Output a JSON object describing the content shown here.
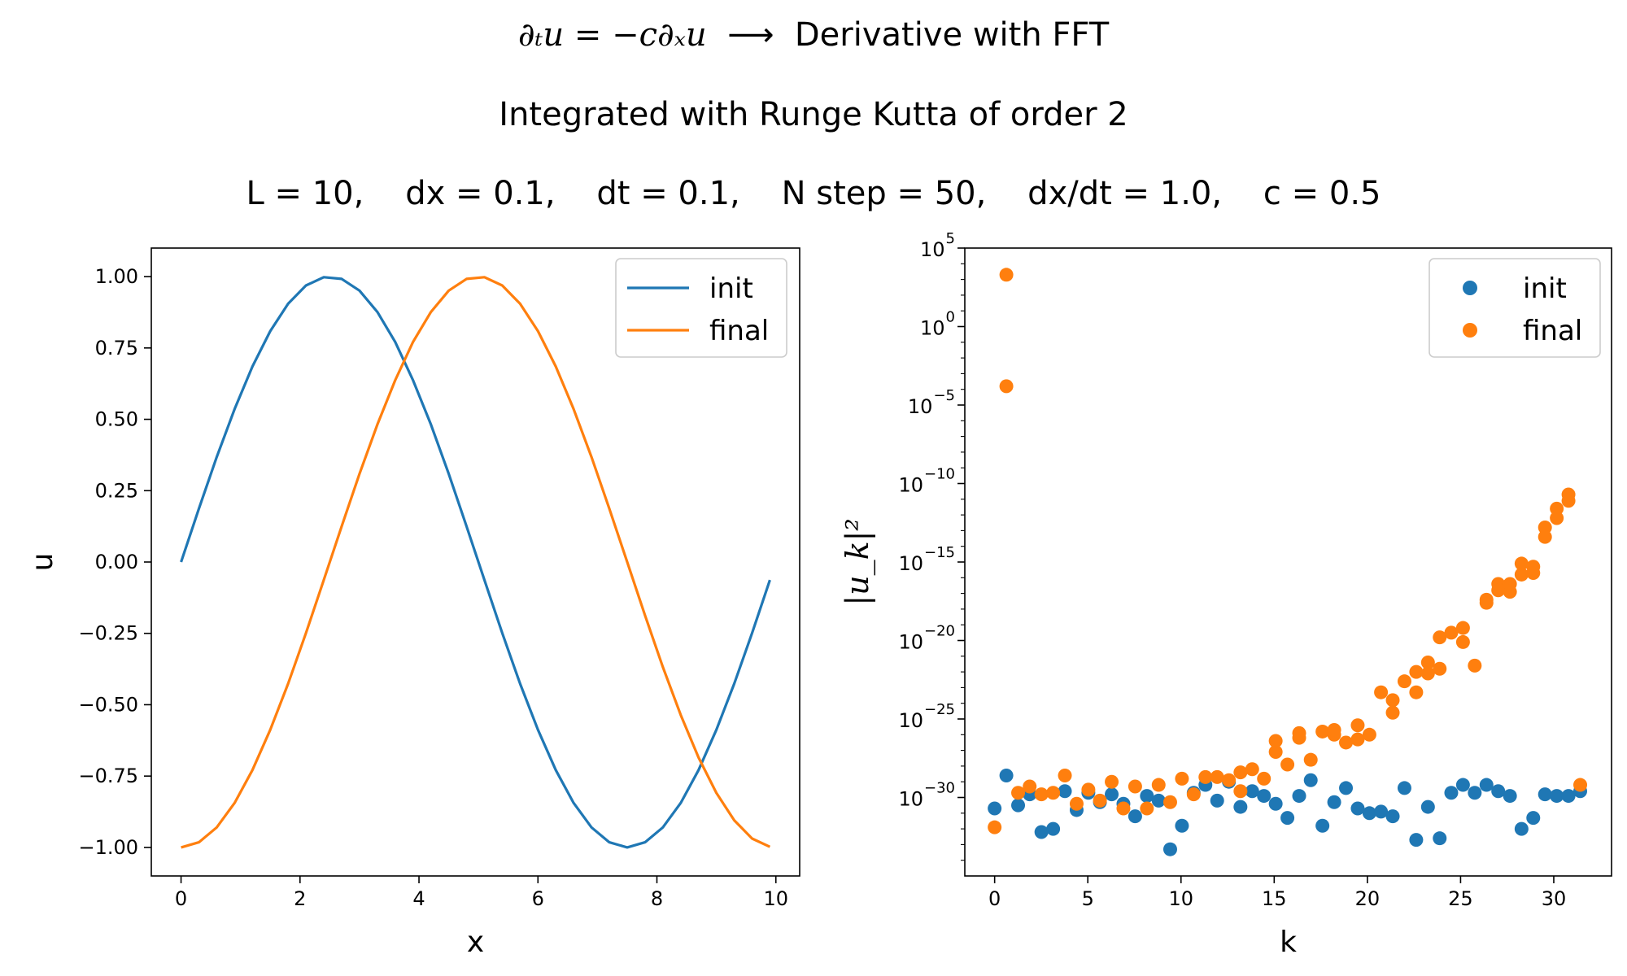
{
  "suptitle": {
    "line1_math": "∂ₜu = −c∂ₓu",
    "line1_arrow": "⟶",
    "line1_text": "Derivative with FFT",
    "line2": "Integrated with Runge Kutta of order 2",
    "line3": "L = 10,    dx = 0.1,    dt = 0.1,    N step = 50,    dx/dt = 1.0,    c = 0.5"
  },
  "colors": {
    "init": "#1f77b4",
    "final": "#ff7f0e"
  },
  "chart_data": [
    {
      "type": "line",
      "xlabel": "x",
      "ylabel": "u",
      "xlim": [
        -0.5,
        10.4
      ],
      "ylim": [
        -1.1,
        1.1
      ],
      "xticks": [
        0,
        2,
        4,
        6,
        8,
        10
      ],
      "yticks": [
        1.0,
        0.75,
        0.5,
        0.25,
        0.0,
        -0.25,
        -0.5,
        -0.75,
        -1.0
      ],
      "ytick_labels": [
        "1.00",
        "0.75",
        "0.50",
        "0.25",
        "0.00",
        "−0.25",
        "−0.50",
        "−0.75",
        "−1.00"
      ],
      "legend_position": "upper-right",
      "series": [
        {
          "name": "init",
          "x": [
            0.0,
            0.3,
            0.6,
            0.9,
            1.2,
            1.5,
            1.8,
            2.1,
            2.4,
            2.7,
            3.0,
            3.3,
            3.6,
            3.9,
            4.2,
            4.5,
            4.8,
            5.1,
            5.4,
            5.7,
            6.0,
            6.3,
            6.6,
            6.9,
            7.2,
            7.5,
            7.8,
            8.1,
            8.4,
            8.7,
            9.0,
            9.3,
            9.6,
            9.9
          ],
          "y": [
            0.0,
            0.187,
            0.368,
            0.536,
            0.685,
            0.809,
            0.905,
            0.969,
            0.998,
            0.992,
            0.951,
            0.876,
            0.771,
            0.637,
            0.482,
            0.309,
            0.125,
            -0.063,
            -0.249,
            -0.426,
            -0.588,
            -0.729,
            -0.844,
            -0.93,
            -0.982,
            -1.0,
            -0.982,
            -0.93,
            -0.844,
            -0.729,
            -0.588,
            -0.426,
            -0.249,
            -0.063
          ]
        },
        {
          "name": "final",
          "x": [
            0.0,
            0.3,
            0.6,
            0.9,
            1.2,
            1.5,
            1.8,
            2.1,
            2.4,
            2.7,
            3.0,
            3.3,
            3.6,
            3.9,
            4.2,
            4.5,
            4.8,
            5.1,
            5.4,
            5.7,
            6.0,
            6.3,
            6.6,
            6.9,
            7.2,
            7.5,
            7.8,
            8.1,
            8.4,
            8.7,
            9.0,
            9.3,
            9.6,
            9.9
          ],
          "y": [
            -1.0,
            -0.982,
            -0.93,
            -0.844,
            -0.729,
            -0.588,
            -0.426,
            -0.249,
            -0.063,
            0.125,
            0.309,
            0.482,
            0.637,
            0.771,
            0.876,
            0.951,
            0.992,
            0.998,
            0.969,
            0.905,
            0.809,
            0.685,
            0.536,
            0.368,
            0.187,
            0.0,
            -0.187,
            -0.368,
            -0.536,
            -0.685,
            -0.809,
            -0.905,
            -0.969,
            -0.998
          ]
        }
      ]
    },
    {
      "type": "scatter",
      "xlabel": "k",
      "ylabel": "|u_k|²",
      "yscale": "log",
      "xlim": [
        -1.6,
        33.1
      ],
      "ylim_log10": [
        -35,
        5
      ],
      "xticks": [
        0,
        5,
        10,
        15,
        20,
        25,
        30
      ],
      "ytick_exponents": [
        5,
        0,
        -5,
        -10,
        -15,
        -20,
        -25,
        -30
      ],
      "legend_position": "upper-right",
      "series": [
        {
          "name": "init",
          "x": [
            0.0,
            0.63,
            1.26,
            1.88,
            2.51,
            3.14,
            3.77,
            4.4,
            5.03,
            5.65,
            6.28,
            6.91,
            7.54,
            8.17,
            8.8,
            9.42,
            10.05,
            10.68,
            11.31,
            11.94,
            12.57,
            13.19,
            13.82,
            14.45,
            15.08,
            15.71,
            16.34,
            16.96,
            17.59,
            18.22,
            18.85,
            19.48,
            20.11,
            20.73,
            21.36,
            21.99,
            22.62,
            23.25,
            23.88,
            24.5,
            25.13,
            25.76,
            26.39,
            27.02,
            27.65,
            28.27,
            28.9,
            29.53,
            30.16,
            30.79,
            31.42
          ],
          "y_log10": [
            -30.7,
            -28.6,
            -30.5,
            -29.8,
            -32.2,
            -32.0,
            -29.6,
            -30.8,
            -29.7,
            -30.3,
            -29.8,
            -30.4,
            -31.2,
            -29.9,
            -30.2,
            -33.3,
            -31.8,
            -29.7,
            -29.2,
            -30.2,
            -29.0,
            -30.6,
            -29.6,
            -29.9,
            -30.4,
            -31.3,
            -29.9,
            -28.9,
            -31.8,
            -30.3,
            -29.4,
            -30.7,
            -31.0,
            -30.9,
            -31.2,
            -29.4,
            -32.7,
            -30.6,
            -32.6,
            -29.7,
            -29.2,
            -29.7,
            -29.2,
            -29.6,
            -29.9,
            -32.0,
            -31.3,
            -29.8,
            -29.9,
            -29.9,
            -29.6
          ]
        },
        {
          "name": "final",
          "x": [
            0.0,
            0.63,
            1.26,
            1.88,
            2.51,
            3.14,
            3.77,
            4.4,
            5.03,
            5.65,
            6.28,
            6.91,
            7.54,
            8.17,
            8.8,
            9.42,
            10.05,
            10.68,
            11.31,
            11.94,
            12.57,
            13.19,
            13.82,
            14.45,
            15.08,
            15.71,
            16.34,
            16.96,
            17.59,
            18.22,
            18.85,
            19.48,
            20.11,
            20.73,
            21.36,
            21.99,
            22.62,
            23.25,
            23.88,
            24.5,
            25.13,
            25.76,
            26.39,
            27.02,
            27.65,
            28.27,
            28.9,
            29.53,
            30.16,
            30.79,
            31.42
          ],
          "y_log10": [
            -31.9,
            -3.8,
            -29.7,
            -29.3,
            -29.8,
            -29.7,
            -28.6,
            -30.4,
            -29.5,
            -30.2,
            -29.0,
            -30.7,
            -29.3,
            -30.7,
            -29.2,
            -30.3,
            -28.8,
            -29.8,
            -28.7,
            -28.7,
            -28.9,
            -29.6,
            -28.2,
            -28.8,
            -27.1,
            -27.9,
            -26.2,
            -27.6,
            -25.8,
            -26.0,
            -26.5,
            -26.3,
            -26.0,
            -23.3,
            -24.6,
            -22.6,
            -22.0,
            -22.1,
            -19.8,
            -19.5,
            -19.2,
            -21.6,
            -17.6,
            -16.4,
            -16.9,
            -15.8,
            -15.7,
            -12.8,
            -12.2,
            -11.1,
            -29.2
          ],
          "extra_points": [
            {
              "x": 0.63,
              "y_log10": 3.3
            },
            {
              "x": 13.19,
              "y_log10": -28.4
            },
            {
              "x": 15.08,
              "y_log10": -26.4
            },
            {
              "x": 16.34,
              "y_log10": -25.9
            },
            {
              "x": 18.22,
              "y_log10": -25.7
            },
            {
              "x": 19.48,
              "y_log10": -25.4
            },
            {
              "x": 21.36,
              "y_log10": -23.8
            },
            {
              "x": 22.62,
              "y_log10": -23.3
            },
            {
              "x": 23.25,
              "y_log10": -21.4
            },
            {
              "x": 23.88,
              "y_log10": -21.8
            },
            {
              "x": 25.13,
              "y_log10": -20.1
            },
            {
              "x": 26.39,
              "y_log10": -17.4
            },
            {
              "x": 27.02,
              "y_log10": -16.8
            },
            {
              "x": 27.65,
              "y_log10": -16.4
            },
            {
              "x": 28.27,
              "y_log10": -15.1
            },
            {
              "x": 28.9,
              "y_log10": -15.3
            },
            {
              "x": 29.53,
              "y_log10": -13.4
            },
            {
              "x": 30.16,
              "y_log10": -11.6
            },
            {
              "x": 30.79,
              "y_log10": -10.7
            }
          ]
        }
      ]
    }
  ]
}
